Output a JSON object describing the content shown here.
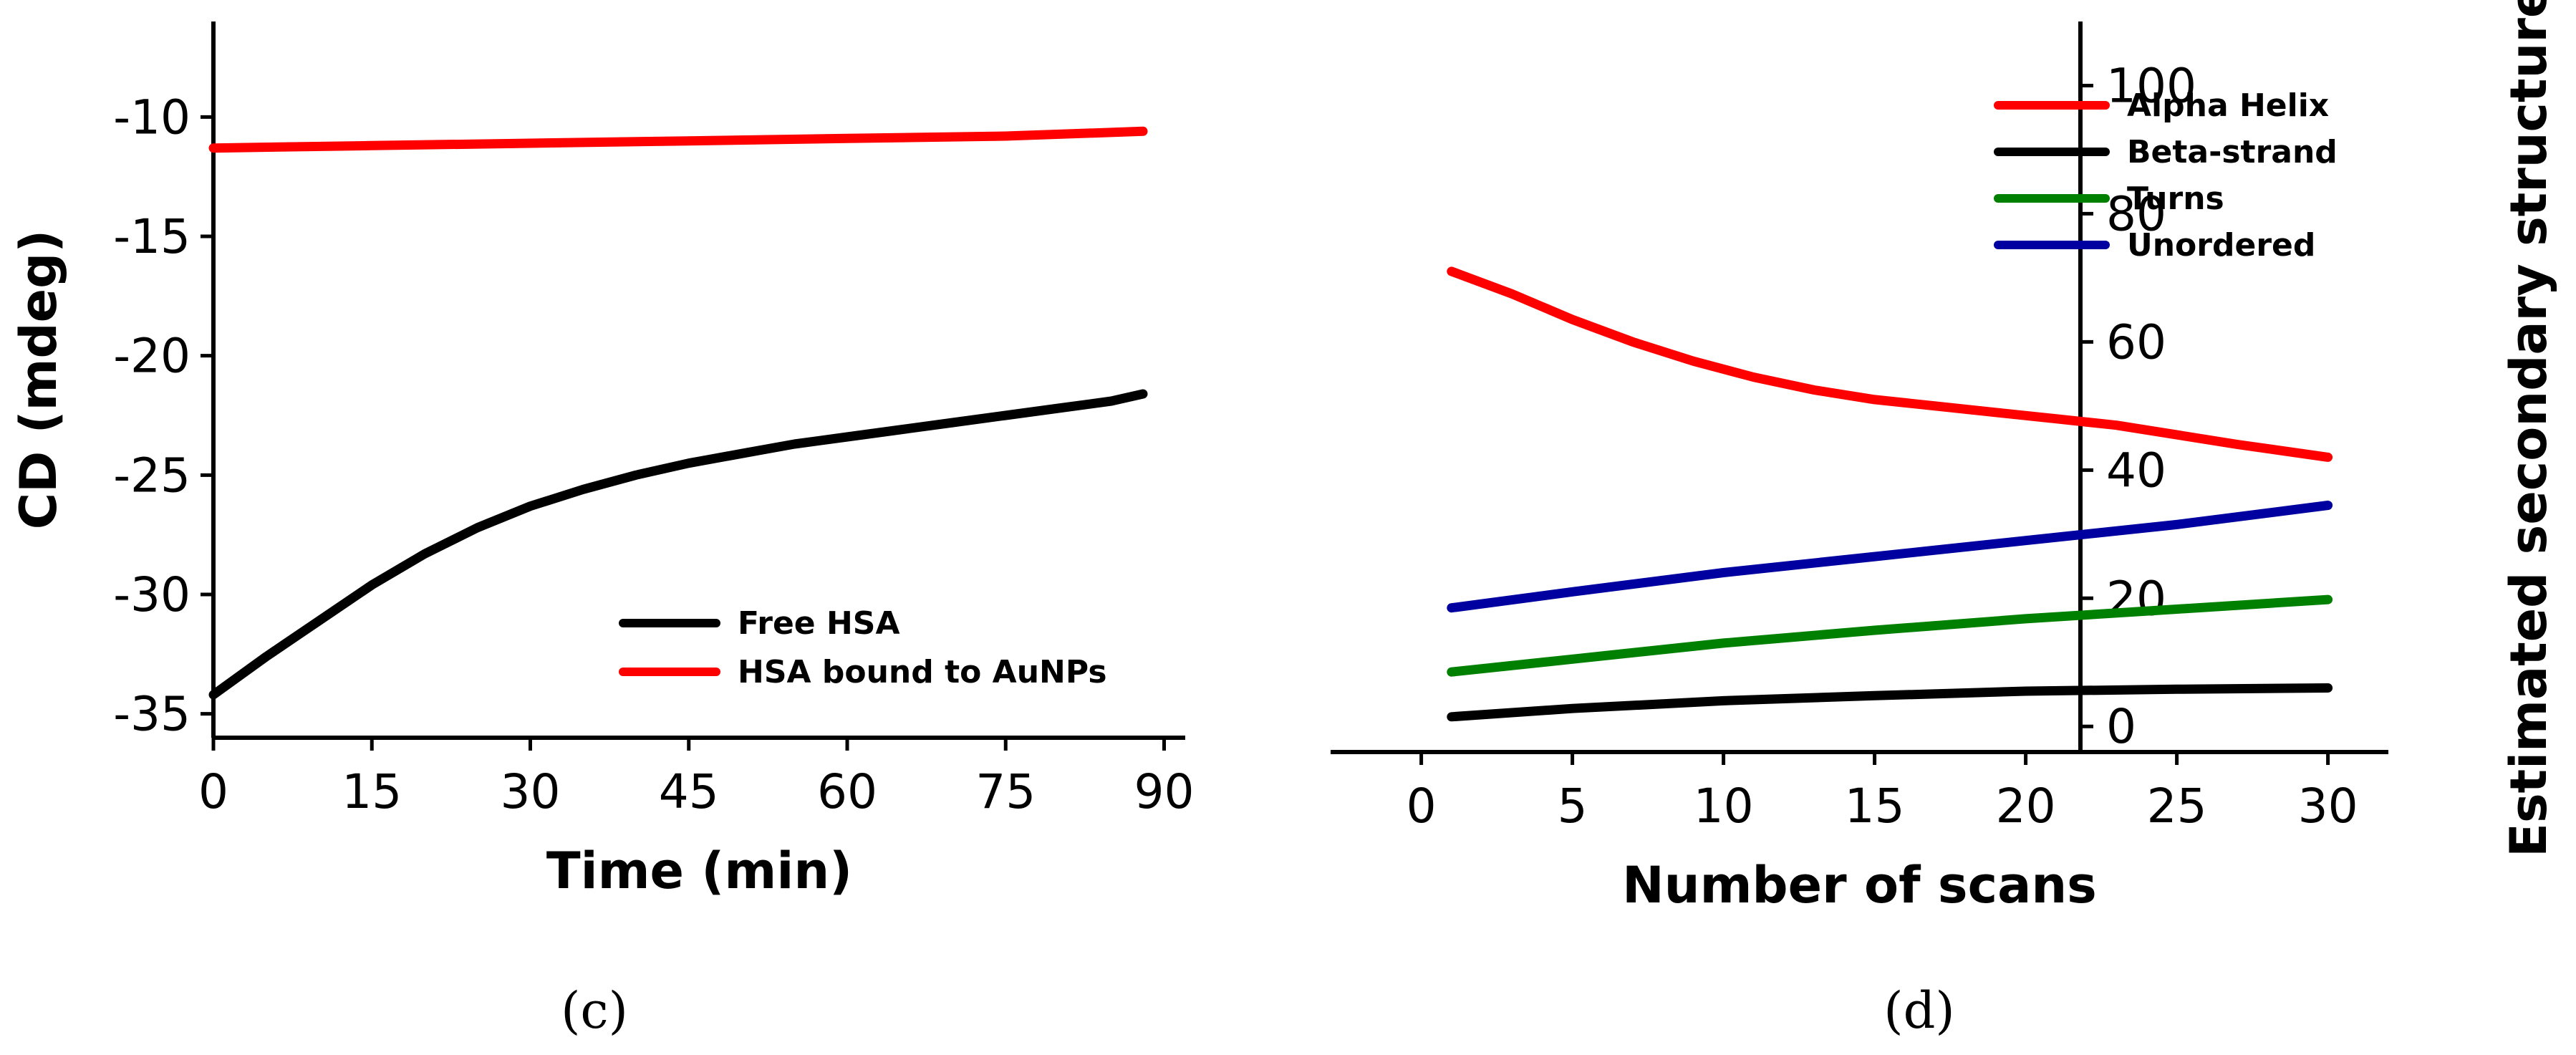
{
  "chart_data": [
    {
      "type": "line",
      "panel_label": "(c)",
      "xlabel": "Time (min)",
      "ylabel": "CD (mdeg)",
      "xlim": [
        0,
        92
      ],
      "ylim": [
        -36,
        -6
      ],
      "x_ticks": [
        0,
        15,
        30,
        45,
        60,
        75,
        90
      ],
      "y_ticks": [
        -35,
        -30,
        -25,
        -20,
        -15,
        -10
      ],
      "legend_position": "bottom-right",
      "grid": false,
      "series": [
        {
          "name": "Free HSA",
          "color": "#000000",
          "x": [
            0,
            5,
            10,
            15,
            20,
            25,
            30,
            35,
            40,
            45,
            50,
            55,
            60,
            65,
            70,
            75,
            80,
            85,
            88
          ],
          "y": [
            -34.2,
            -32.6,
            -31.1,
            -29.6,
            -28.3,
            -27.2,
            -26.3,
            -25.6,
            -25.0,
            -24.5,
            -24.1,
            -23.7,
            -23.4,
            -23.1,
            -22.8,
            -22.5,
            -22.2,
            -21.9,
            -21.6
          ]
        },
        {
          "name": "HSA bound to AuNPs",
          "color": "#ff0000",
          "x": [
            0,
            15,
            30,
            45,
            60,
            75,
            88
          ],
          "y": [
            -11.3,
            -11.2,
            -11.1,
            -11.0,
            -10.9,
            -10.8,
            -10.6
          ]
        }
      ]
    },
    {
      "type": "line",
      "panel_label": "(d)",
      "xlabel": "Number of scans",
      "ylabel": "Estimated secondary structure %",
      "y_axis_side": "right",
      "xlim": [
        -3,
        32
      ],
      "ylim": [
        -4,
        110
      ],
      "x_ticks": [
        0,
        5,
        10,
        15,
        20,
        25,
        30
      ],
      "y_ticks": [
        0,
        20,
        40,
        60,
        80,
        100
      ],
      "legend_position": "top-right",
      "grid": false,
      "series": [
        {
          "name": "Alpha Helix",
          "color": "#ff0000",
          "x": [
            1,
            3,
            5,
            7,
            9,
            11,
            13,
            15,
            17,
            19,
            21,
            23,
            25,
            27,
            30
          ],
          "y": [
            71,
            67.5,
            63.5,
            60,
            57,
            54.5,
            52.5,
            51,
            50,
            49,
            48,
            47,
            45.5,
            44,
            42
          ]
        },
        {
          "name": "Beta-strand",
          "color": "#000000",
          "x": [
            1,
            5,
            10,
            15,
            20,
            25,
            30
          ],
          "y": [
            1.5,
            2.8,
            4.0,
            4.8,
            5.5,
            5.8,
            6.0
          ]
        },
        {
          "name": "Turns",
          "color": "#008000",
          "x": [
            1,
            5,
            10,
            15,
            20,
            25,
            30
          ],
          "y": [
            8.5,
            10.5,
            13.0,
            15.0,
            16.8,
            18.3,
            19.8
          ]
        },
        {
          "name": "Unordered",
          "color": "#0000a0",
          "x": [
            1,
            5,
            10,
            15,
            20,
            25,
            30
          ],
          "y": [
            18.5,
            21.0,
            24.0,
            26.5,
            29.0,
            31.5,
            34.5
          ]
        }
      ]
    }
  ]
}
